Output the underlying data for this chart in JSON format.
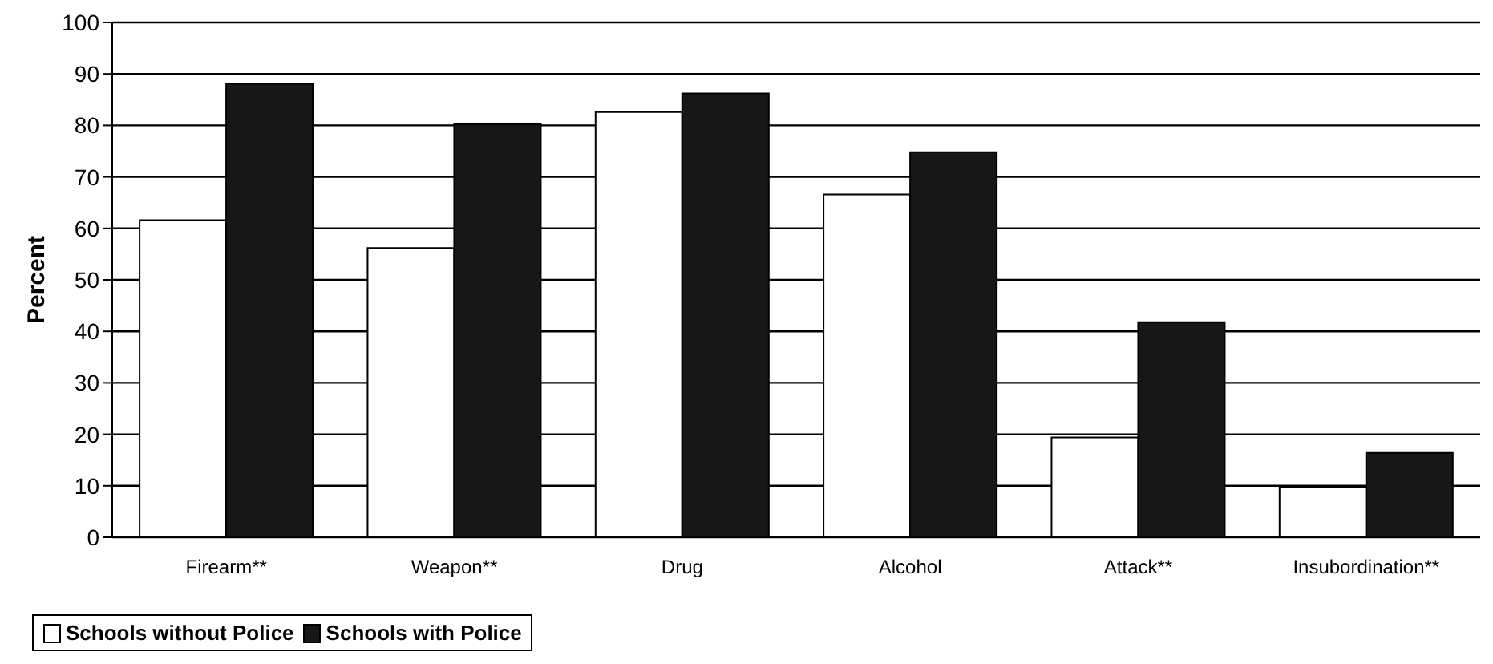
{
  "chart_data": {
    "type": "bar",
    "ylabel": "Percent",
    "categories": [
      "Firearm**",
      "Weapon**",
      "Drug",
      "Alcohol",
      "Attack**",
      "Insubordination**"
    ],
    "series": [
      {
        "name": "Schools without Police",
        "color": "#ffffff",
        "values": [
          61.6,
          56.2,
          82.6,
          66.6,
          19.4,
          9.8
        ]
      },
      {
        "name": "Schools with Police",
        "color": "#171717",
        "values": [
          88.1,
          80.2,
          86.2,
          74.8,
          41.8,
          16.4
        ]
      }
    ],
    "ylim": [
      0,
      100
    ],
    "yticks": [
      0,
      10,
      20,
      30,
      40,
      50,
      60,
      70,
      80,
      90,
      100
    ],
    "grid": "y",
    "legend": "bottom"
  }
}
